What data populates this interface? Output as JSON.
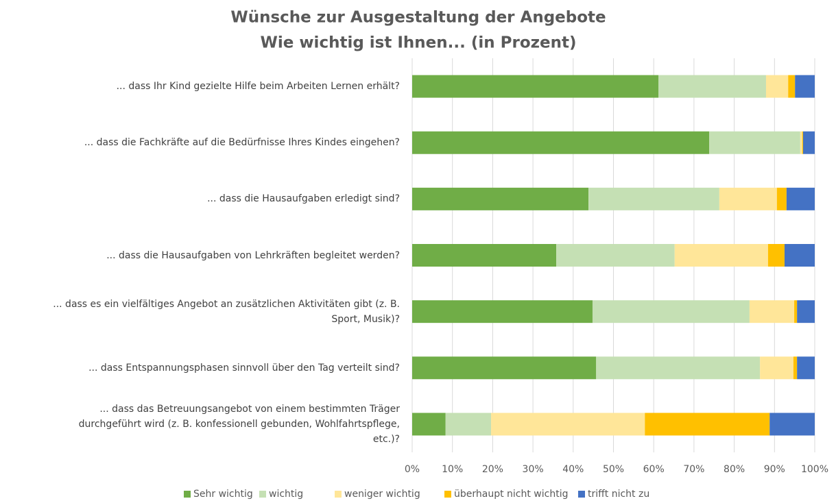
{
  "chart_data": {
    "type": "stacked_barh",
    "title": "Wünsche zur Ausgestaltung der Angebote",
    "subtitle": "Wie wichtig ist Ihnen... (in Prozent)",
    "categories": [
      "... dass Ihr Kind gezielte Hilfe beim Arbeiten Lernen erhält?",
      "... dass die Fachkräfte auf die Bedürfnisse Ihres Kindes eingehen?",
      "... dass die Hausaufgaben erledigt sind?",
      "... dass die Hausaufgaben von Lehrkräften begleitet werden?",
      "... dass es ein vielfältiges Angebot an zusätzlichen Aktivitäten gibt (z. B.\nSport, Musik)?",
      "... dass Entspannungsphasen sinnvoll über den Tag verteilt sind?",
      "... dass das Betreuungsangebot von einem bestimmten Träger\ndurchgeführt wird     (z. B. konfessionell gebunden, Wohlfahrtspflege,\netc.)?"
    ],
    "series": [
      {
        "name": "Sehr wichtig",
        "color": "#70ad47",
        "values": [
          61.2,
          73.8,
          43.8,
          35.8,
          44.8,
          45.7,
          8.3
        ]
      },
      {
        "name": "wichtig",
        "color": "#c5e0b4",
        "values": [
          26.7,
          22.6,
          32.5,
          29.4,
          39.0,
          40.7,
          11.3
        ]
      },
      {
        "name": "weniger wichtig",
        "color": "#ffe699",
        "values": [
          5.5,
          0.5,
          14.3,
          23.2,
          11.1,
          8.3,
          38.2
        ]
      },
      {
        "name": "überhaupt nicht wichtig",
        "color": "#ffc000",
        "values": [
          1.7,
          0.2,
          2.4,
          4.1,
          0.7,
          0.9,
          31.0
        ]
      },
      {
        "name": "trifft nicht zu",
        "color": "#4472c4",
        "values": [
          4.9,
          2.9,
          7.0,
          7.5,
          4.4,
          4.4,
          11.2
        ]
      }
    ],
    "xlim": [
      0,
      100
    ],
    "xticks": [
      {
        "value": 0,
        "label": "0%"
      },
      {
        "value": 10,
        "label": "10%"
      },
      {
        "value": 20,
        "label": "20%"
      },
      {
        "value": 30,
        "label": "30%"
      },
      {
        "value": 40,
        "label": "40%"
      },
      {
        "value": 50,
        "label": "50%"
      },
      {
        "value": 60,
        "label": "60%"
      },
      {
        "value": 70,
        "label": "70%"
      },
      {
        "value": 80,
        "label": "80%"
      },
      {
        "value": 90,
        "label": "90%"
      },
      {
        "value": 100,
        "label": "100%"
      }
    ],
    "grid": true,
    "legend": "bottom"
  }
}
